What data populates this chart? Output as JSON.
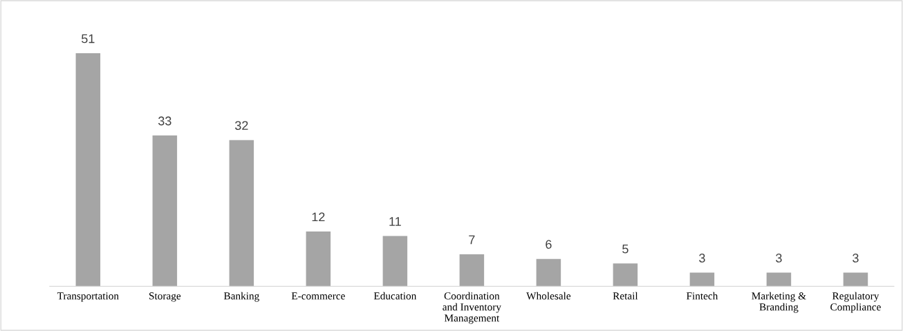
{
  "chart_data": {
    "type": "bar",
    "categories": [
      "Transportation",
      "Storage",
      "Banking",
      "E-commerce",
      "Education",
      "Coordination\nand Inventory\nManagement",
      "Wholesale",
      "Retail",
      "Fintech",
      "Marketing &\nBranding",
      "Regulatory\nCompliance"
    ],
    "values": [
      51,
      33,
      32,
      12,
      11,
      7,
      6,
      5,
      3,
      3,
      3
    ],
    "color": "#a5a5a5",
    "data_labels": true,
    "grid": false,
    "legend": false
  }
}
